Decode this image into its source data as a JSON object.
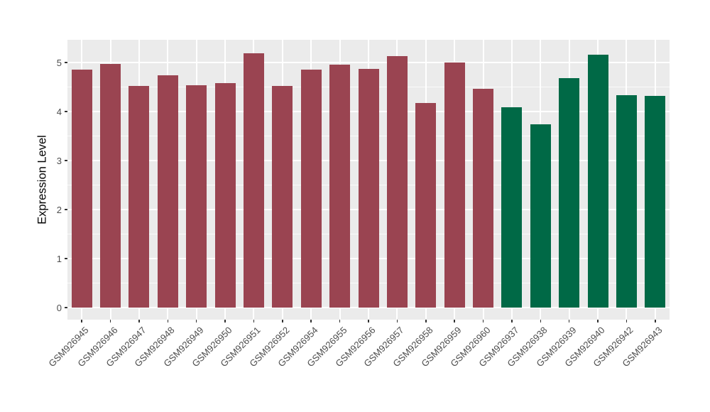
{
  "chart_data": {
    "type": "bar",
    "title": "",
    "xlabel": "",
    "ylabel": "Expression Level",
    "ylim": [
      0,
      5.46
    ],
    "yticks": [
      0,
      1,
      2,
      3,
      4,
      5
    ],
    "ytick_labels": [
      "0",
      "1",
      "2",
      "3",
      "4",
      "5"
    ],
    "minor_gridlines": [
      0.5,
      1.5,
      2.5,
      3.5,
      4.5
    ],
    "grid": "white major and minor gridlines on gray panel",
    "legend_position": "none",
    "categories": [
      "GSM926945",
      "GSM926946",
      "GSM926947",
      "GSM926948",
      "GSM926949",
      "GSM926950",
      "GSM926951",
      "GSM926952",
      "GSM926954",
      "GSM926955",
      "GSM926956",
      "GSM926957",
      "GSM926958",
      "GSM926959",
      "GSM926960",
      "GSM926937",
      "GSM926938",
      "GSM926939",
      "GSM926940",
      "GSM926942",
      "GSM926943"
    ],
    "values": [
      4.86,
      4.97,
      4.52,
      4.74,
      4.54,
      4.58,
      5.19,
      4.52,
      4.86,
      4.96,
      4.87,
      5.13,
      4.17,
      5.0,
      4.46,
      4.09,
      3.74,
      4.68,
      5.16,
      4.33,
      4.32
    ],
    "groups": [
      "group1",
      "group1",
      "group1",
      "group1",
      "group1",
      "group1",
      "group1",
      "group1",
      "group1",
      "group1",
      "group1",
      "group1",
      "group1",
      "group1",
      "group1",
      "group2",
      "group2",
      "group2",
      "group2",
      "group2",
      "group2"
    ],
    "group_colors": {
      "group1": "#9A4451",
      "group2": "#006946"
    },
    "colors": {
      "figure_background": "#FFFFFF",
      "panel_background": "#EBEBEB",
      "gridline": "#FFFFFF",
      "axis_text": "#4D4D4D",
      "axis_title": "#000000",
      "tick_mark": "#333333"
    }
  }
}
